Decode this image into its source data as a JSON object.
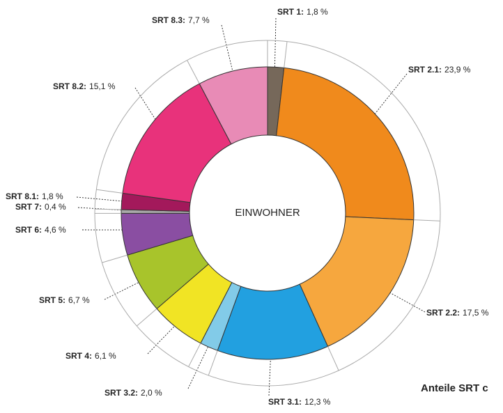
{
  "chart_data": {
    "type": "donut",
    "center_label": "EINWOHNER",
    "caption": "Anteile SRT c",
    "categories": [
      "SRT 1:",
      "SRT 2.1:",
      "SRT 2.2:",
      "SRT 3.1:",
      "SRT 3.2:",
      "SRT 4:",
      "SRT 5:",
      "SRT 6:",
      "SRT 7:",
      "SRT 8.1:",
      "SRT 8.2:",
      "SRT 8.3:"
    ],
    "values": [
      1.8,
      23.9,
      17.5,
      12.3,
      2.0,
      6.1,
      6.7,
      4.6,
      0.4,
      1.8,
      15.1,
      7.7
    ],
    "value_labels": [
      "1,8 %",
      "23,9 %",
      "17,5 %",
      "12,3 %",
      "2,0 %",
      "6,1 %",
      "6,7 %",
      "4,6 %",
      "0,4 %",
      "1,8 %",
      "15,1 %",
      "7,7 %"
    ],
    "colors": [
      "#76685a",
      "#f08a1c",
      "#f6a73e",
      "#22a0e0",
      "#82cbe8",
      "#f1e424",
      "#a8c42b",
      "#8a4ea2",
      "#a9a9a9",
      "#a3195b",
      "#e8327b",
      "#e88bb6"
    ]
  }
}
